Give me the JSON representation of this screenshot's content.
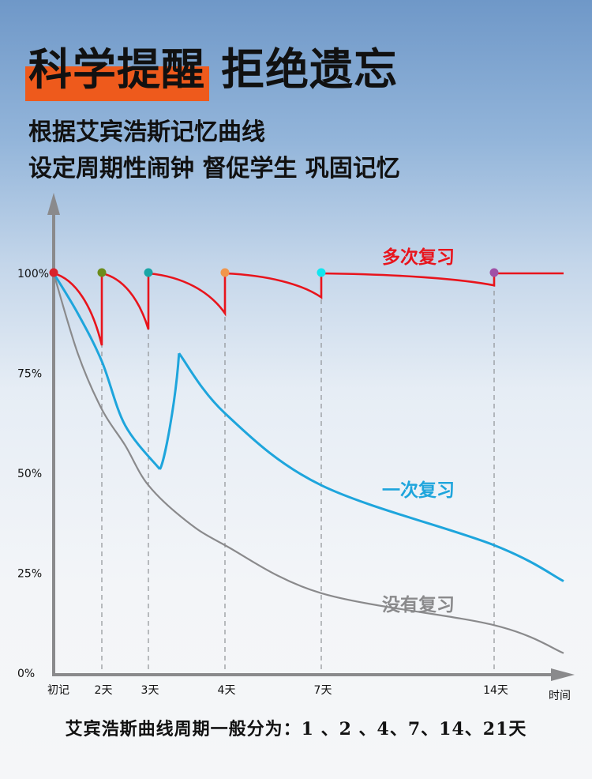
{
  "header": {
    "title": "科学提醒 拒绝遗忘",
    "subtitle_line1": "根据艾宾浩斯记忆曲线",
    "subtitle_line2": "设定周期性闹钟 督促学生 巩固记忆"
  },
  "colors": {
    "title_highlight": "#ee5a1c",
    "multi_review": "#e8141c",
    "single_review": "#1ea5dc",
    "no_review": "#8a8a8c",
    "axis": "#8a8a8c"
  },
  "chart_data": {
    "type": "line",
    "x_tick_labels": [
      "初记",
      "2天",
      "3天",
      "4天",
      "7天",
      "14天"
    ],
    "x_axis_label": "时间",
    "y_tick_labels": [
      "100%",
      "75%",
      "50%",
      "25%",
      "0%"
    ],
    "ylim": [
      0,
      100
    ],
    "grid": "vertical dashed lines at review days",
    "series": [
      {
        "name": "多次复习",
        "color": "#e8141c",
        "segments": [
          {
            "x": [
              0,
              1
            ],
            "y": [
              100,
              82
            ]
          },
          {
            "x": [
              1,
              2
            ],
            "y": [
              100,
              86
            ]
          },
          {
            "x": [
              2,
              3
            ],
            "y": [
              100,
              90
            ]
          },
          {
            "x": [
              3,
              4
            ],
            "y": [
              100,
              94
            ]
          },
          {
            "x": [
              4,
              5
            ],
            "y": [
              100,
              97
            ]
          },
          {
            "x": [
              5,
              6
            ],
            "y": [
              100,
              100
            ]
          }
        ],
        "markers": [
          {
            "x": 0,
            "y": 100,
            "color": "#d8242c"
          },
          {
            "x": 1,
            "y": 100,
            "color": "#6c8c1c"
          },
          {
            "x": 2,
            "y": 100,
            "color": "#1aa6a6"
          },
          {
            "x": 3,
            "y": 100,
            "color": "#f0964c"
          },
          {
            "x": 4,
            "y": 100,
            "color": "#10e6f0"
          },
          {
            "x": 5,
            "y": 100,
            "color": "#a050a6"
          }
        ]
      },
      {
        "name": "一次复习",
        "color": "#1ea5dc",
        "x": [
          0,
          0.5,
          1,
          1.5,
          2.15,
          2.4,
          3,
          4,
          5,
          6
        ],
        "y": [
          100,
          90,
          78,
          62,
          51,
          80,
          65,
          47,
          32,
          23
        ]
      },
      {
        "name": "没有复习",
        "color": "#8a8a8c",
        "x": [
          0,
          0.5,
          1,
          1.5,
          2,
          2.5,
          3,
          4,
          5,
          6
        ],
        "y": [
          100,
          80,
          66,
          57,
          47,
          38,
          32,
          20,
          12,
          5
        ]
      }
    ]
  },
  "footer": {
    "note": "艾宾浩斯曲线周期一般分为：1 、2 、4、7、14、21天"
  }
}
